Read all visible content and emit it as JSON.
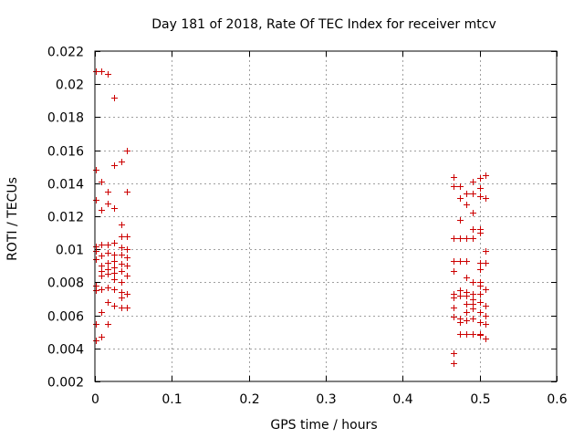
{
  "chart_data": {
    "type": "scatter",
    "title": "Day 181 of 2018, Rate Of TEC Index for receiver mtcv",
    "xlabel": "GPS time / hours",
    "ylabel": "ROTI / TECUs",
    "xlim": [
      0,
      0.6
    ],
    "ylim": [
      0.002,
      0.022
    ],
    "xticks": [
      0,
      0.1,
      0.2,
      0.3,
      0.4,
      0.5,
      0.6
    ],
    "xtick_labels": [
      "0",
      "0.1",
      "0.2",
      "0.3",
      "0.4",
      "0.5",
      "0.6"
    ],
    "yticks": [
      0.002,
      0.004,
      0.006,
      0.008,
      0.01,
      0.012,
      0.014,
      0.016,
      0.018,
      0.02,
      0.022
    ],
    "ytick_labels": [
      "0.002",
      "0.004",
      "0.006",
      "0.008",
      "0.01",
      "0.012",
      "0.014",
      "0.016",
      "0.018",
      "0.02",
      "0.022"
    ],
    "grid": true,
    "marker": "+",
    "color": "#cc0000",
    "series": [
      {
        "name": "ROTI",
        "points": [
          [
            0.001,
            0.0208
          ],
          [
            0.008,
            0.0208
          ],
          [
            0.017,
            0.0206
          ],
          [
            0.025,
            0.0192
          ],
          [
            0.042,
            0.016
          ],
          [
            0.034,
            0.0153
          ],
          [
            0.025,
            0.0151
          ],
          [
            0.001,
            0.0148
          ],
          [
            0.008,
            0.0141
          ],
          [
            0.017,
            0.0135
          ],
          [
            0.042,
            0.0135
          ],
          [
            0.001,
            0.013
          ],
          [
            0.017,
            0.0128
          ],
          [
            0.025,
            0.0125
          ],
          [
            0.008,
            0.0124
          ],
          [
            0.034,
            0.0115
          ],
          [
            0.034,
            0.0108
          ],
          [
            0.042,
            0.0108
          ],
          [
            0.025,
            0.0104
          ],
          [
            0.017,
            0.0103
          ],
          [
            0.001,
            0.0102
          ],
          [
            0.008,
            0.0103
          ],
          [
            0.034,
            0.0101
          ],
          [
            0.042,
            0.01
          ],
          [
            0.001,
            0.0099
          ],
          [
            0.017,
            0.0098
          ],
          [
            0.025,
            0.0097
          ],
          [
            0.034,
            0.0097
          ],
          [
            0.008,
            0.0096
          ],
          [
            0.042,
            0.0095
          ],
          [
            0.001,
            0.0094
          ],
          [
            0.025,
            0.0093
          ],
          [
            0.017,
            0.0092
          ],
          [
            0.034,
            0.0091
          ],
          [
            0.008,
            0.009
          ],
          [
            0.042,
            0.009
          ],
          [
            0.025,
            0.0089
          ],
          [
            0.017,
            0.0088
          ],
          [
            0.008,
            0.0087
          ],
          [
            0.034,
            0.0087
          ],
          [
            0.025,
            0.0086
          ],
          [
            0.017,
            0.0085
          ],
          [
            0.008,
            0.0084
          ],
          [
            0.042,
            0.0084
          ],
          [
            0.025,
            0.0082
          ],
          [
            0.034,
            0.008
          ],
          [
            0.001,
            0.0078
          ],
          [
            0.017,
            0.0077
          ],
          [
            0.008,
            0.0076
          ],
          [
            0.025,
            0.0076
          ],
          [
            0.001,
            0.0075
          ],
          [
            0.034,
            0.0074
          ],
          [
            0.042,
            0.0073
          ],
          [
            0.034,
            0.0071
          ],
          [
            0.017,
            0.0068
          ],
          [
            0.025,
            0.0066
          ],
          [
            0.034,
            0.0065
          ],
          [
            0.042,
            0.0065
          ],
          [
            0.008,
            0.0062
          ],
          [
            0.001,
            0.0055
          ],
          [
            0.017,
            0.0055
          ],
          [
            0.008,
            0.0047
          ],
          [
            0.001,
            0.0045
          ],
          [
            0.466,
            0.0144
          ],
          [
            0.508,
            0.0145
          ],
          [
            0.5,
            0.0143
          ],
          [
            0.491,
            0.0141
          ],
          [
            0.466,
            0.0138
          ],
          [
            0.474,
            0.0138
          ],
          [
            0.5,
            0.0137
          ],
          [
            0.483,
            0.0134
          ],
          [
            0.491,
            0.0134
          ],
          [
            0.5,
            0.0132
          ],
          [
            0.474,
            0.0131
          ],
          [
            0.508,
            0.0131
          ],
          [
            0.483,
            0.0127
          ],
          [
            0.491,
            0.0122
          ],
          [
            0.474,
            0.0118
          ],
          [
            0.491,
            0.0112
          ],
          [
            0.5,
            0.0112
          ],
          [
            0.5,
            0.011
          ],
          [
            0.466,
            0.0107
          ],
          [
            0.474,
            0.0107
          ],
          [
            0.483,
            0.0107
          ],
          [
            0.491,
            0.0107
          ],
          [
            0.508,
            0.0099
          ],
          [
            0.466,
            0.0093
          ],
          [
            0.474,
            0.0093
          ],
          [
            0.483,
            0.0093
          ],
          [
            0.5,
            0.0092
          ],
          [
            0.508,
            0.0092
          ],
          [
            0.5,
            0.0088
          ],
          [
            0.466,
            0.0087
          ],
          [
            0.483,
            0.0083
          ],
          [
            0.491,
            0.008
          ],
          [
            0.5,
            0.008
          ],
          [
            0.5,
            0.0078
          ],
          [
            0.508,
            0.0076
          ],
          [
            0.474,
            0.0075
          ],
          [
            0.483,
            0.0074
          ],
          [
            0.466,
            0.0073
          ],
          [
            0.491,
            0.0073
          ],
          [
            0.5,
            0.0073
          ],
          [
            0.474,
            0.0072
          ],
          [
            0.483,
            0.0072
          ],
          [
            0.466,
            0.0071
          ],
          [
            0.491,
            0.007
          ],
          [
            0.5,
            0.0068
          ],
          [
            0.491,
            0.0067
          ],
          [
            0.483,
            0.0067
          ],
          [
            0.508,
            0.0066
          ],
          [
            0.466,
            0.0065
          ],
          [
            0.491,
            0.0064
          ],
          [
            0.483,
            0.0062
          ],
          [
            0.5,
            0.0062
          ],
          [
            0.508,
            0.006
          ],
          [
            0.466,
            0.0059
          ],
          [
            0.474,
            0.0058
          ],
          [
            0.491,
            0.0058
          ],
          [
            0.483,
            0.0057
          ],
          [
            0.474,
            0.0056
          ],
          [
            0.5,
            0.0056
          ],
          [
            0.508,
            0.0055
          ],
          [
            0.474,
            0.0049
          ],
          [
            0.483,
            0.0049
          ],
          [
            0.491,
            0.0049
          ],
          [
            0.5,
            0.0049
          ],
          [
            0.5,
            0.0048
          ],
          [
            0.508,
            0.0046
          ],
          [
            0.466,
            0.0037
          ],
          [
            0.466,
            0.0031
          ]
        ]
      }
    ]
  }
}
